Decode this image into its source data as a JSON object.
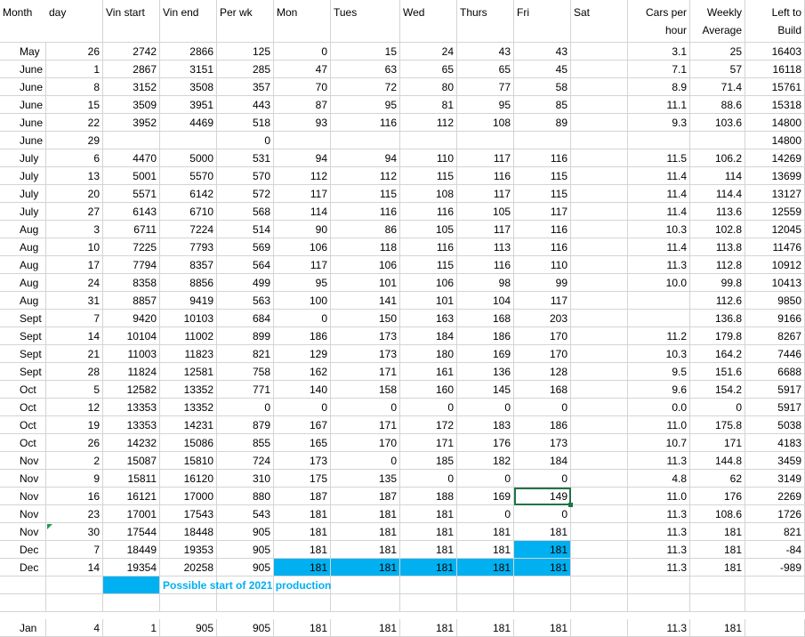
{
  "headers": {
    "month": "Month",
    "day": "day",
    "vin_start": "Vin start",
    "vin_end": "Vin end",
    "per_wk": "Per wk",
    "mon": "Mon",
    "tues": "Tues",
    "wed": "Wed",
    "thurs": "Thurs",
    "fri": "Fri",
    "sat": "Sat",
    "cars_per_hour_1": "Cars per",
    "cars_per_hour_2": "hour",
    "weekly_avg_1": "Weekly",
    "weekly_avg_2": "Average",
    "left_to_build_1": "Left to",
    "left_to_build_2": "Build"
  },
  "rows": [
    [
      "May",
      "26",
      "2742",
      "2866",
      "125",
      "0",
      "15",
      "24",
      "43",
      "43",
      "",
      "3.1",
      "25",
      "16403"
    ],
    [
      "June",
      "1",
      "2867",
      "3151",
      "285",
      "47",
      "63",
      "65",
      "65",
      "45",
      "",
      "7.1",
      "57",
      "16118"
    ],
    [
      "June",
      "8",
      "3152",
      "3508",
      "357",
      "70",
      "72",
      "80",
      "77",
      "58",
      "",
      "8.9",
      "71.4",
      "15761"
    ],
    [
      "June",
      "15",
      "3509",
      "3951",
      "443",
      "87",
      "95",
      "81",
      "95",
      "85",
      "",
      "11.1",
      "88.6",
      "15318"
    ],
    [
      "June",
      "22",
      "3952",
      "4469",
      "518",
      "93",
      "116",
      "112",
      "108",
      "89",
      "",
      "9.3",
      "103.6",
      "14800"
    ],
    [
      "June",
      "29",
      "",
      "",
      "0",
      "",
      "",
      "",
      "",
      "",
      "",
      "",
      "",
      "14800"
    ],
    [
      "July",
      "6",
      "4470",
      "5000",
      "531",
      "94",
      "94",
      "110",
      "117",
      "116",
      "",
      "11.5",
      "106.2",
      "14269"
    ],
    [
      "July",
      "13",
      "5001",
      "5570",
      "570",
      "112",
      "112",
      "115",
      "116",
      "115",
      "",
      "11.4",
      "114",
      "13699"
    ],
    [
      "July",
      "20",
      "5571",
      "6142",
      "572",
      "117",
      "115",
      "108",
      "117",
      "115",
      "",
      "11.4",
      "114.4",
      "13127"
    ],
    [
      "July",
      "27",
      "6143",
      "6710",
      "568",
      "114",
      "116",
      "116",
      "105",
      "117",
      "",
      "11.4",
      "113.6",
      "12559"
    ],
    [
      "Aug",
      "3",
      "6711",
      "7224",
      "514",
      "90",
      "86",
      "105",
      "117",
      "116",
      "",
      "10.3",
      "102.8",
      "12045"
    ],
    [
      "Aug",
      "10",
      "7225",
      "7793",
      "569",
      "106",
      "118",
      "116",
      "113",
      "116",
      "",
      "11.4",
      "113.8",
      "11476"
    ],
    [
      "Aug",
      "17",
      "7794",
      "8357",
      "564",
      "117",
      "106",
      "115",
      "116",
      "110",
      "",
      "11.3",
      "112.8",
      "10912"
    ],
    [
      "Aug",
      "24",
      "8358",
      "8856",
      "499",
      "95",
      "101",
      "106",
      "98",
      "99",
      "",
      "10.0",
      "99.8",
      "10413"
    ],
    [
      "Aug",
      "31",
      "8857",
      "9419",
      "563",
      "100",
      "141",
      "101",
      "104",
      "117",
      "",
      "",
      "112.6",
      "9850"
    ],
    [
      "Sept",
      "7",
      "9420",
      "10103",
      "684",
      "0",
      "150",
      "163",
      "168",
      "203",
      "",
      "",
      "136.8",
      "9166"
    ],
    [
      "Sept",
      "14",
      "10104",
      "11002",
      "899",
      "186",
      "173",
      "184",
      "186",
      "170",
      "",
      "11.2",
      "179.8",
      "8267"
    ],
    [
      "Sept",
      "21",
      "11003",
      "11823",
      "821",
      "129",
      "173",
      "180",
      "169",
      "170",
      "",
      "10.3",
      "164.2",
      "7446"
    ],
    [
      "Sept",
      "28",
      "11824",
      "12581",
      "758",
      "162",
      "171",
      "161",
      "136",
      "128",
      "",
      "9.5",
      "151.6",
      "6688"
    ],
    [
      "Oct",
      "5",
      "12582",
      "13352",
      "771",
      "140",
      "158",
      "160",
      "145",
      "168",
      "",
      "9.6",
      "154.2",
      "5917"
    ],
    [
      "Oct",
      "12",
      "13353",
      "13352",
      "0",
      "0",
      "0",
      "0",
      "0",
      "0",
      "",
      "0.0",
      "0",
      "5917"
    ],
    [
      "Oct",
      "19",
      "13353",
      "14231",
      "879",
      "167",
      "171",
      "172",
      "183",
      "186",
      "",
      "11.0",
      "175.8",
      "5038"
    ],
    [
      "Oct",
      "26",
      "14232",
      "15086",
      "855",
      "165",
      "170",
      "171",
      "176",
      "173",
      "",
      "10.7",
      "171",
      "4183"
    ],
    [
      "Nov",
      "2",
      "15087",
      "15810",
      "724",
      "173",
      "0",
      "185",
      "182",
      "184",
      "",
      "11.3",
      "144.8",
      "3459"
    ],
    [
      "Nov",
      "9",
      "15811",
      "16120",
      "310",
      "175",
      "135",
      "0",
      "0",
      "0",
      "",
      "4.8",
      "62",
      "3149"
    ],
    [
      "Nov",
      "16",
      "16121",
      "17000",
      "880",
      "187",
      "187",
      "188",
      "169",
      "149",
      "",
      "11.0",
      "176",
      "2269"
    ],
    [
      "Nov",
      "23",
      "17001",
      "17543",
      "543",
      "181",
      "181",
      "181",
      "0",
      "0",
      "",
      "11.3",
      "108.6",
      "1726"
    ],
    [
      "Nov",
      "30",
      "17544",
      "18448",
      "905",
      "181",
      "181",
      "181",
      "181",
      "181",
      "",
      "11.3",
      "181",
      "821"
    ],
    [
      "Dec",
      "7",
      "18449",
      "19353",
      "905",
      "181",
      "181",
      "181",
      "181",
      "181",
      "",
      "11.3",
      "181",
      "-84"
    ],
    [
      "Dec",
      "14",
      "19354",
      "20258",
      "905",
      "181",
      "181",
      "181",
      "181",
      "181",
      "",
      "11.3",
      "181",
      "-989"
    ]
  ],
  "note": "Possible start of 2021 production",
  "jan_row": [
    "Jan",
    "4",
    "1",
    "905",
    "905",
    "181",
    "181",
    "181",
    "181",
    "181",
    "",
    "11.3",
    "181",
    ""
  ],
  "colors": {
    "highlight": "#00b0f0",
    "grid": "#d4d4d4",
    "selection": "#217346"
  }
}
